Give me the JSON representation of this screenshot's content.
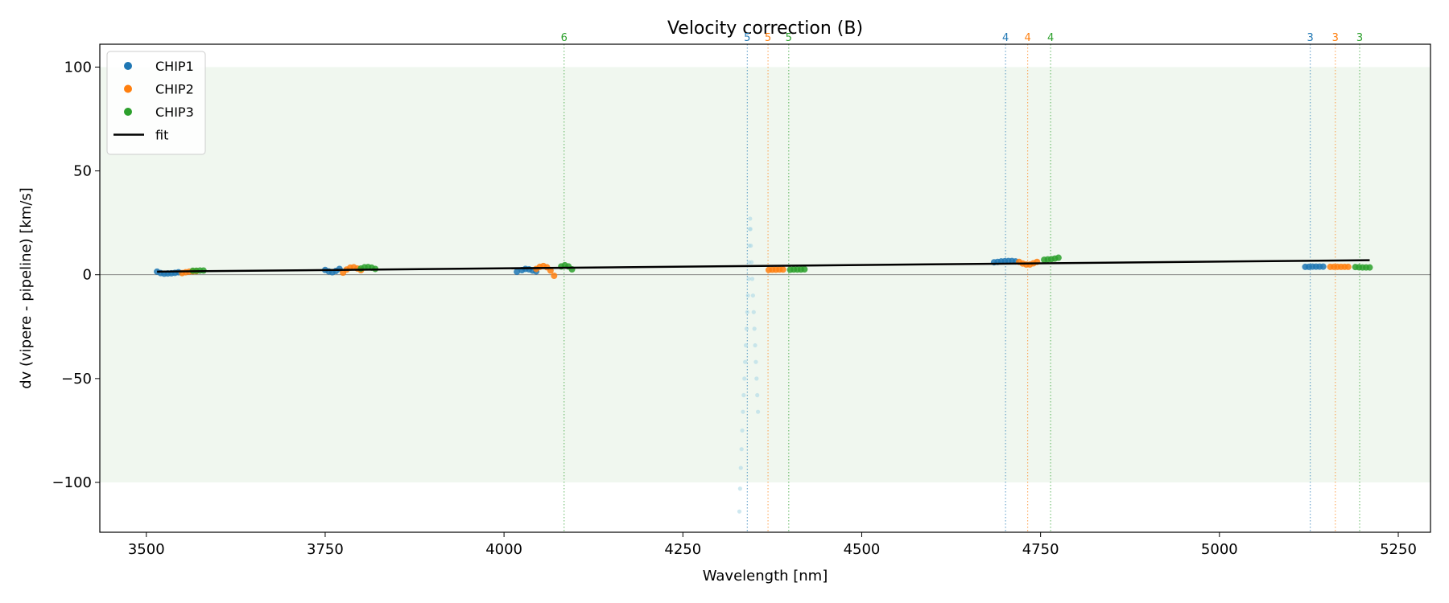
{
  "chart_data": {
    "type": "scatter",
    "title": "Velocity correction (B)",
    "xlabel": "Wavelength [nm]",
    "ylabel": "dv (vipere - pipeline) [km/s]",
    "xlim": [
      3435,
      5295
    ],
    "ylim": [
      -124,
      111
    ],
    "xticks": [
      3500,
      3750,
      4000,
      4250,
      4500,
      4750,
      5000,
      5250
    ],
    "yticks": [
      -100,
      -50,
      0,
      50,
      100
    ],
    "grid": false,
    "legend_position": "top-left",
    "shaded_band": {
      "y": [
        -100,
        100
      ],
      "color": "#f0f7ef"
    },
    "zero_line": 0,
    "colors": {
      "CHIP1": "#1f77b4",
      "CHIP2": "#ff7f0e",
      "CHIP3": "#2ca02c",
      "fit": "#000000"
    },
    "legend": [
      {
        "label": "CHIP1",
        "kind": "marker",
        "color": "#1f77b4"
      },
      {
        "label": "CHIP2",
        "kind": "marker",
        "color": "#ff7f0e"
      },
      {
        "label": "CHIP3",
        "kind": "marker",
        "color": "#2ca02c"
      },
      {
        "label": "fit",
        "kind": "line",
        "color": "#000000"
      }
    ],
    "order_markers": [
      {
        "x": 4084,
        "label": "6",
        "chip": "CHIP3"
      },
      {
        "x": 4340,
        "label": "5",
        "chip": "CHIP1"
      },
      {
        "x": 4369,
        "label": "5",
        "chip": "CHIP2"
      },
      {
        "x": 4398,
        "label": "5",
        "chip": "CHIP3"
      },
      {
        "x": 4701,
        "label": "4",
        "chip": "CHIP1"
      },
      {
        "x": 4732,
        "label": "4",
        "chip": "CHIP2"
      },
      {
        "x": 4764,
        "label": "4",
        "chip": "CHIP3"
      },
      {
        "x": 5127,
        "label": "3",
        "chip": "CHIP1"
      },
      {
        "x": 5162,
        "label": "3",
        "chip": "CHIP2"
      },
      {
        "x": 5196,
        "label": "3",
        "chip": "CHIP3"
      }
    ],
    "fit": {
      "x": [
        3515,
        5210
      ],
      "y": [
        1.5,
        7.0
      ]
    },
    "series": [
      {
        "name": "CHIP1",
        "points": [
          [
            3515,
            1.5
          ],
          [
            3520,
            0.8
          ],
          [
            3525,
            0.5
          ],
          [
            3530,
            0.6
          ],
          [
            3535,
            0.7
          ],
          [
            3540,
            0.9
          ],
          [
            3545,
            1.2
          ],
          [
            3750,
            2.3
          ],
          [
            3755,
            1.6
          ],
          [
            3760,
            1.2
          ],
          [
            3765,
            1.8
          ],
          [
            3770,
            2.8
          ],
          [
            4018,
            1.4
          ],
          [
            4025,
            2.2
          ],
          [
            4030,
            2.8
          ],
          [
            4035,
            2.6
          ],
          [
            4040,
            2.0
          ],
          [
            4045,
            1.6
          ],
          [
            4685,
            6.0
          ],
          [
            4690,
            6.2
          ],
          [
            4695,
            6.4
          ],
          [
            4700,
            6.5
          ],
          [
            4705,
            6.6
          ],
          [
            4710,
            6.6
          ],
          [
            4715,
            6.4
          ],
          [
            5120,
            3.8
          ],
          [
            5125,
            3.8
          ],
          [
            5130,
            3.9
          ],
          [
            5135,
            3.9
          ],
          [
            5140,
            3.9
          ],
          [
            5145,
            3.9
          ]
        ]
      },
      {
        "name": "CHIP2",
        "points": [
          [
            3550,
            0.8
          ],
          [
            3555,
            1.2
          ],
          [
            3560,
            1.5
          ],
          [
            3565,
            1.6
          ],
          [
            3570,
            1.7
          ],
          [
            3775,
            1.0
          ],
          [
            3780,
            2.5
          ],
          [
            3785,
            3.4
          ],
          [
            3790,
            3.6
          ],
          [
            3795,
            3.0
          ],
          [
            3800,
            2.2
          ],
          [
            4045,
            2.8
          ],
          [
            4050,
            3.8
          ],
          [
            4055,
            4.2
          ],
          [
            4060,
            3.6
          ],
          [
            4065,
            2.0
          ],
          [
            4070,
            -0.5
          ],
          [
            4370,
            2.3
          ],
          [
            4375,
            2.4
          ],
          [
            4380,
            2.4
          ],
          [
            4385,
            2.5
          ],
          [
            4390,
            2.5
          ],
          [
            4720,
            6.2
          ],
          [
            4725,
            5.4
          ],
          [
            4730,
            4.9
          ],
          [
            4735,
            4.9
          ],
          [
            4740,
            5.5
          ],
          [
            4745,
            6.2
          ],
          [
            5155,
            3.8
          ],
          [
            5160,
            3.8
          ],
          [
            5165,
            3.8
          ],
          [
            5170,
            3.8
          ],
          [
            5175,
            3.8
          ],
          [
            5180,
            3.8
          ]
        ]
      },
      {
        "name": "CHIP3",
        "points": [
          [
            3565,
            1.9
          ],
          [
            3570,
            1.9
          ],
          [
            3575,
            2.0
          ],
          [
            3580,
            2.0
          ],
          [
            3800,
            3.0
          ],
          [
            3805,
            3.6
          ],
          [
            3810,
            3.7
          ],
          [
            3815,
            3.4
          ],
          [
            3820,
            2.8
          ],
          [
            4080,
            4.0
          ],
          [
            4085,
            4.6
          ],
          [
            4090,
            4.0
          ],
          [
            4095,
            2.6
          ],
          [
            4400,
            2.4
          ],
          [
            4405,
            2.5
          ],
          [
            4410,
            2.5
          ],
          [
            4415,
            2.5
          ],
          [
            4420,
            2.6
          ],
          [
            4755,
            7.2
          ],
          [
            4760,
            7.4
          ],
          [
            4765,
            7.5
          ],
          [
            4770,
            7.8
          ],
          [
            4775,
            8.2
          ],
          [
            5190,
            3.7
          ],
          [
            5195,
            3.6
          ],
          [
            5200,
            3.5
          ],
          [
            5205,
            3.5
          ],
          [
            5210,
            3.5
          ]
        ]
      },
      {
        "name": "",
        "faint": true,
        "color": "#add8e6",
        "points": [
          [
            4329,
            -114
          ],
          [
            4330,
            -103
          ],
          [
            4331,
            -93
          ],
          [
            4332,
            -84
          ],
          [
            4333,
            -75
          ],
          [
            4334,
            -66
          ],
          [
            4335,
            -58
          ],
          [
            4336,
            -50
          ],
          [
            4337,
            -42
          ],
          [
            4338,
            -34
          ],
          [
            4339,
            -26
          ],
          [
            4340,
            -18
          ],
          [
            4341,
            -10
          ],
          [
            4342,
            -2
          ],
          [
            4342.5,
            6
          ],
          [
            4343,
            14
          ],
          [
            4343.5,
            22
          ],
          [
            4344,
            27
          ],
          [
            4344.5,
            22
          ],
          [
            4345,
            14
          ],
          [
            4346,
            6
          ],
          [
            4347,
            -2
          ],
          [
            4348,
            -10
          ],
          [
            4349,
            -18
          ],
          [
            4350,
            -26
          ],
          [
            4351,
            -34
          ],
          [
            4352,
            -42
          ],
          [
            4353,
            -50
          ],
          [
            4354,
            -58
          ],
          [
            4355,
            -66
          ]
        ]
      }
    ]
  }
}
